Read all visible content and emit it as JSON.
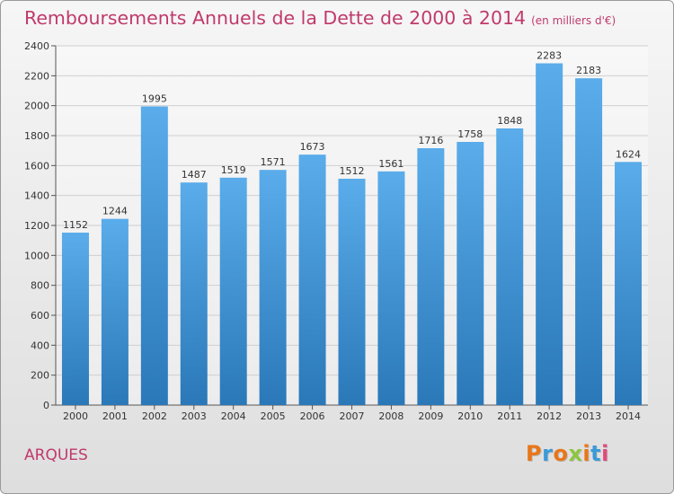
{
  "header": {
    "title": "Remboursements Annuels de la Dette de 2000 à 2014",
    "subtitle": "(en milliers d'€)"
  },
  "footer": {
    "commune": "ARQUES",
    "logo_text": "Proxiti",
    "logo_colors": [
      "#e8761a",
      "#3a9ad9",
      "#e8761a",
      "#8dc63f",
      "#e8761a",
      "#3a9ad9",
      "#e04b7a"
    ]
  },
  "colors": {
    "title": "#c03a6b",
    "bar_top": "#5aacea",
    "bar_bottom": "#2a78b8",
    "grid": "#cfcfcf"
  },
  "chart_data": {
    "type": "bar",
    "categories": [
      "2000",
      "2001",
      "2002",
      "2003",
      "2004",
      "2005",
      "2006",
      "2007",
      "2008",
      "2009",
      "2010",
      "2011",
      "2012",
      "2013",
      "2014"
    ],
    "values": [
      1152,
      1244,
      1995,
      1487,
      1519,
      1571,
      1673,
      1512,
      1561,
      1716,
      1758,
      1848,
      2283,
      2183,
      1624
    ],
    "title": "Remboursements Annuels de la Dette de 2000 à 2014",
    "ylim": [
      0,
      2400
    ],
    "yticks": [
      0,
      200,
      400,
      600,
      800,
      1000,
      1200,
      1400,
      1600,
      1800,
      2000,
      2200,
      2400
    ],
    "grid": true
  }
}
